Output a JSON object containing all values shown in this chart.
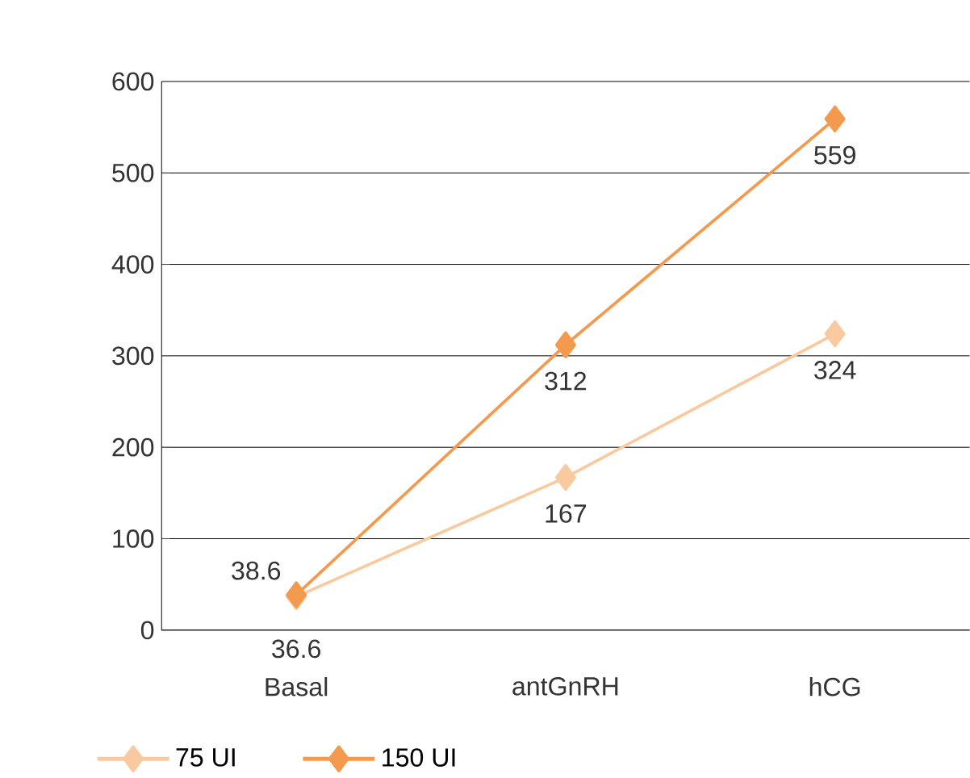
{
  "chart_data": {
    "type": "line",
    "categories": [
      "Basal",
      "antGnRH",
      "hCG"
    ],
    "series": [
      {
        "name": "75 UI",
        "color": "#f9c9a0",
        "values": [
          36.6,
          167,
          324
        ]
      },
      {
        "name": "150 UI",
        "color": "#f39a4f",
        "values": [
          38.6,
          312,
          559
        ]
      }
    ],
    "ylim": [
      0,
      600
    ],
    "yticks": [
      0,
      100,
      200,
      300,
      400,
      500,
      600
    ],
    "grid": "y",
    "legend": "bottom",
    "marker": "diamond",
    "line_style": "solid",
    "data_labels": true
  }
}
